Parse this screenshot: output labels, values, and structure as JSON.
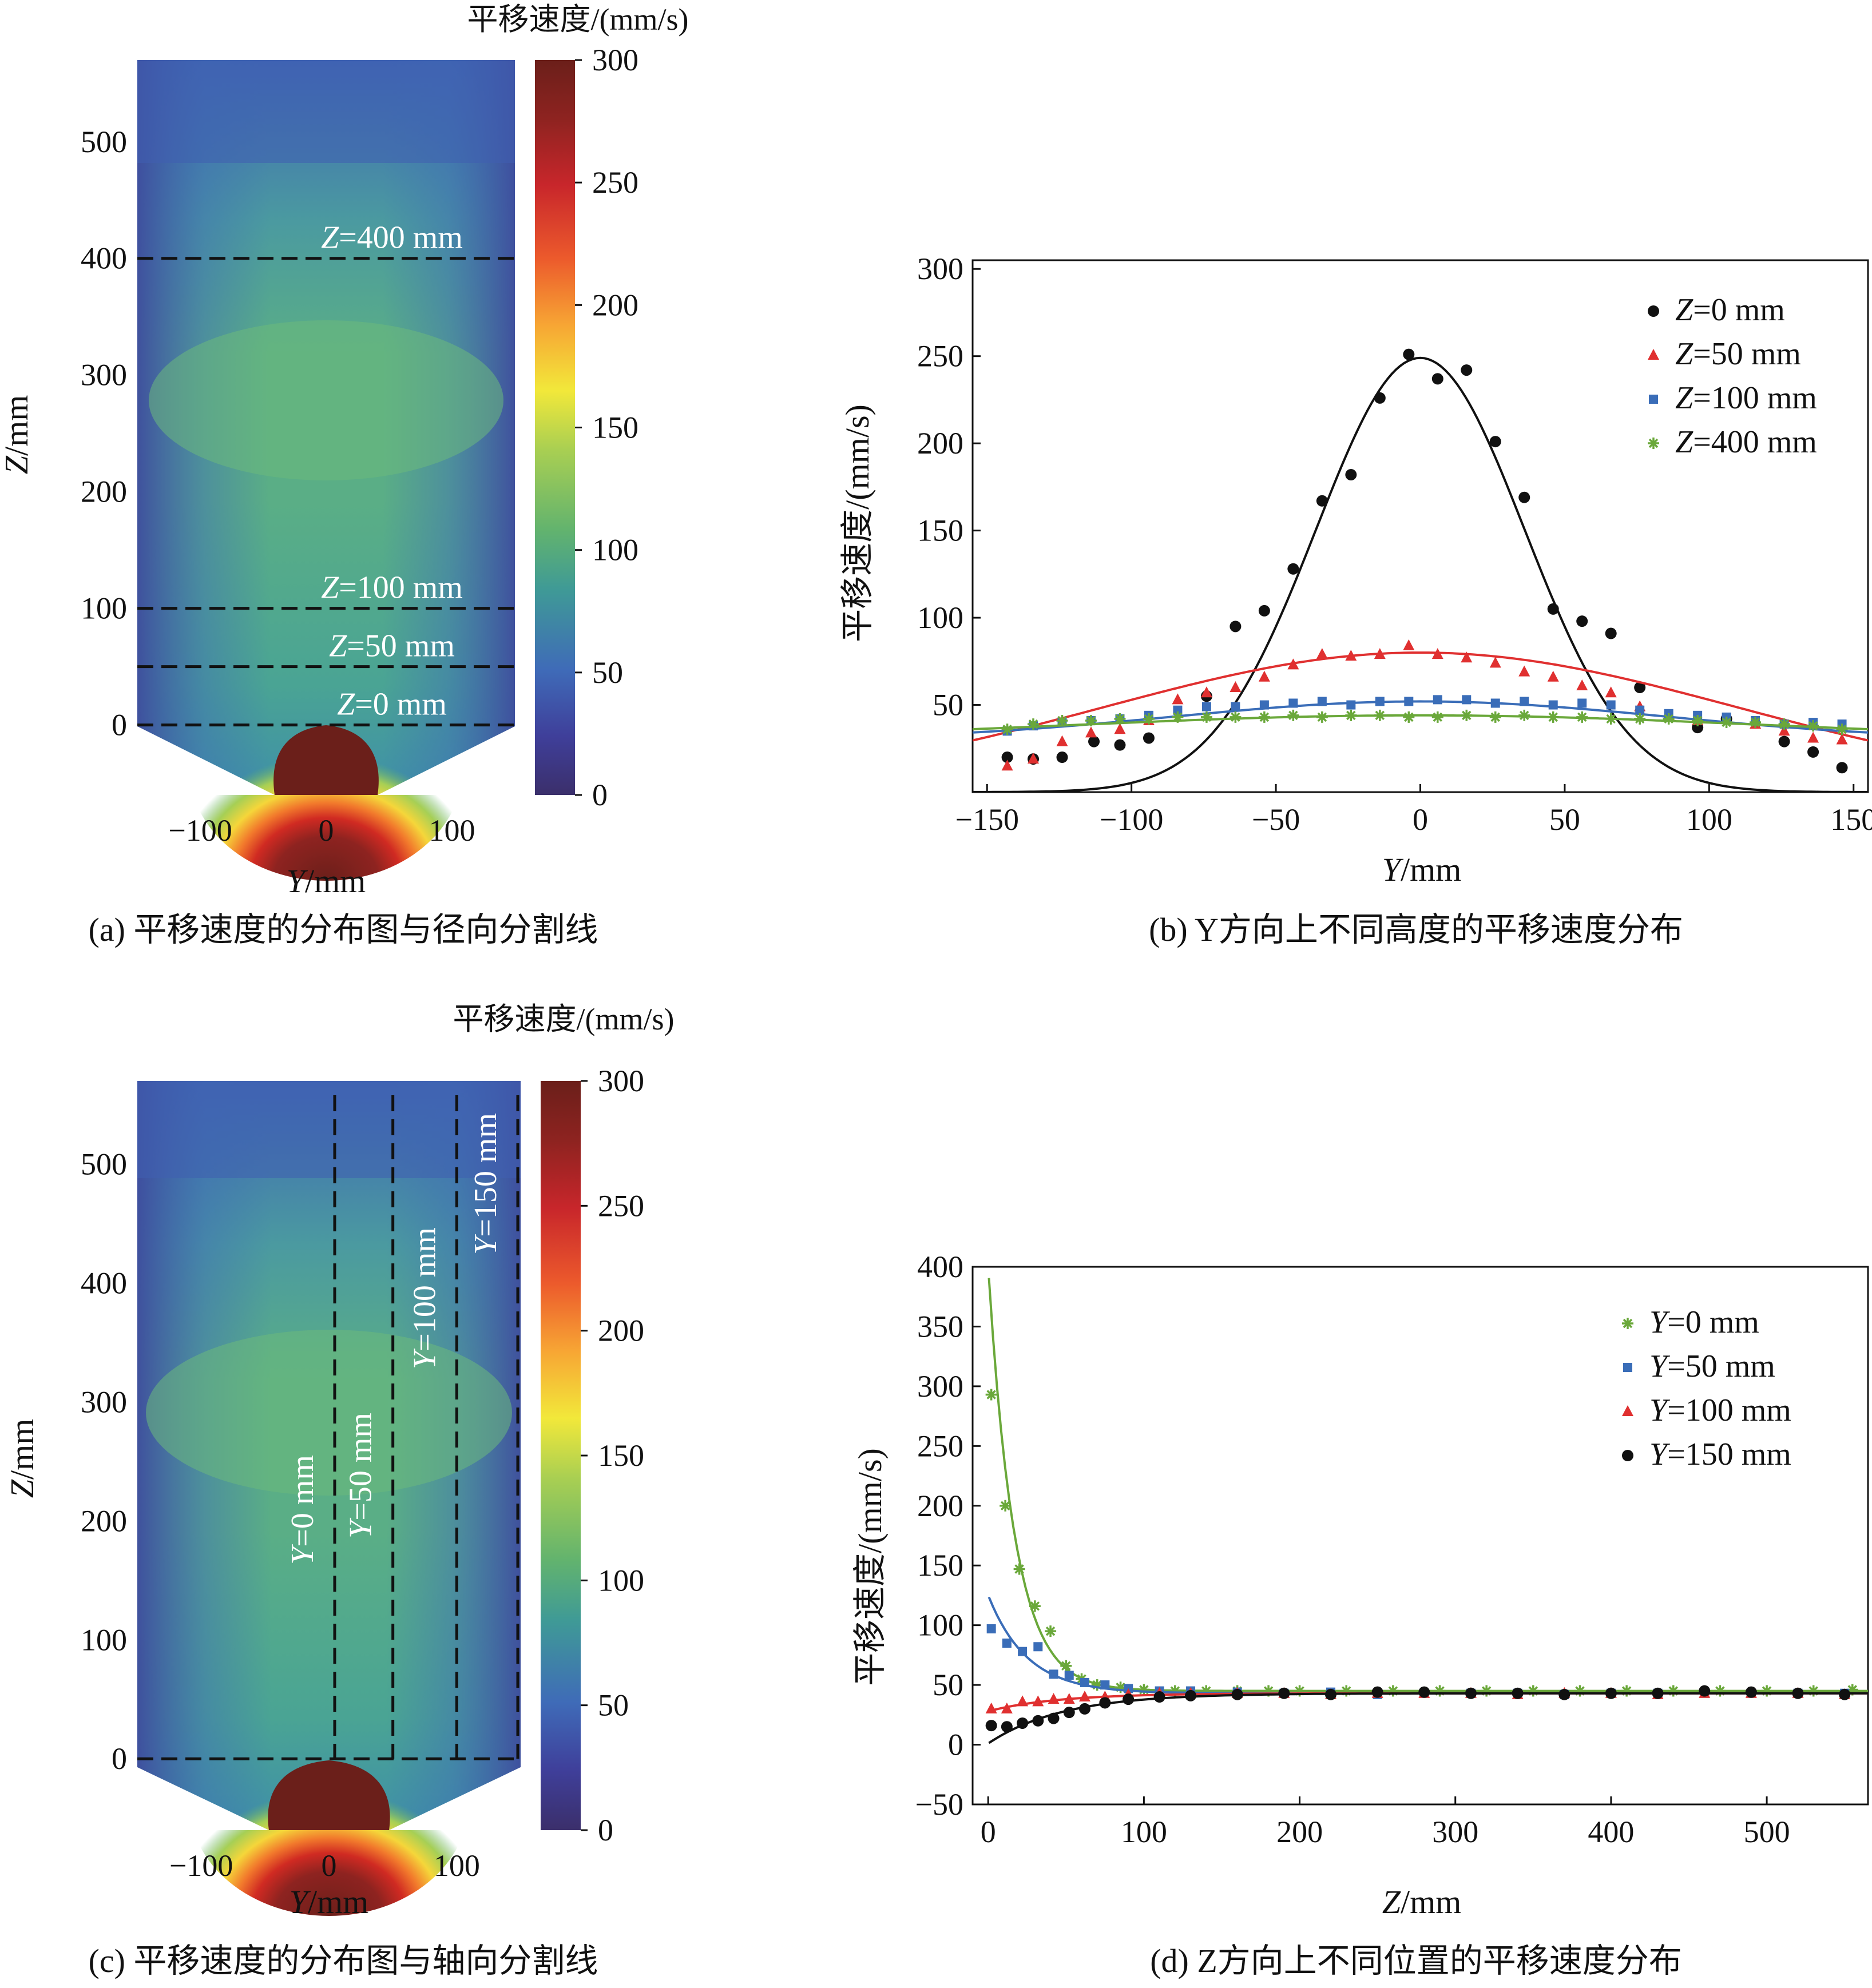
{
  "colors": {
    "Z0": "#111111",
    "Z50": "#e03030",
    "Z100": "#3a6db8",
    "Z400": "#6aa83a",
    "Y0": "#6aa83a",
    "Y50": "#3a6db8",
    "Y100": "#e03030",
    "Y150": "#111111"
  },
  "chart_data": [
    {
      "id": "a",
      "type": "heatmap",
      "caption": "(a) 平移速度的分布图与径向分割线",
      "xlabel": "Y/mm",
      "ylabel": "Z/mm",
      "x_ticks": [
        "−100",
        "0",
        "100"
      ],
      "y_ticks": [
        "0",
        "100",
        "200",
        "300",
        "400",
        "500"
      ],
      "colorbar_title": "平移速度/(mm/s)",
      "colorbar_ticks": [
        "0",
        "50",
        "100",
        "150",
        "200",
        "250",
        "300"
      ],
      "colorbar_range": [
        0,
        300
      ],
      "xlim": [
        -150,
        150
      ],
      "ylim": [
        -60,
        570
      ],
      "cut_lines": [
        {
          "label": "Z=0 mm",
          "z": 0
        },
        {
          "label": "Z=50 mm",
          "z": 50
        },
        {
          "label": "Z=100 mm",
          "z": 100
        },
        {
          "label": "Z=400 mm",
          "z": 400
        }
      ]
    },
    {
      "id": "b",
      "type": "scatter",
      "caption": "(b) Y方向上不同高度的平移速度分布",
      "xlabel": "Y/mm",
      "ylabel": "平移速度/(mm/s)",
      "xlim": [
        -155,
        155
      ],
      "ylim": [
        0,
        305
      ],
      "x_ticks": [
        "−150",
        "−100",
        "−50",
        "0",
        "50",
        "100",
        "150"
      ],
      "y_ticks": [
        "50",
        "100",
        "150",
        "200",
        "250",
        "300"
      ],
      "legend_position": "top-right",
      "series": [
        {
          "name": "Z=0 mm",
          "marker": "circle",
          "points": [
            [
              -143,
              20
            ],
            [
              -134,
              19
            ],
            [
              -124,
              20
            ],
            [
              -113,
              29
            ],
            [
              -104,
              27
            ],
            [
              -94,
              31
            ],
            [
              -74,
              55
            ],
            [
              -64,
              95
            ],
            [
              -54,
              104
            ],
            [
              -44,
              128
            ],
            [
              -34,
              167
            ],
            [
              -24,
              182
            ],
            [
              -14,
              226
            ],
            [
              -4,
              251
            ],
            [
              6,
              237
            ],
            [
              16,
              242
            ],
            [
              26,
              201
            ],
            [
              36,
              169
            ],
            [
              46,
              105
            ],
            [
              56,
              98
            ],
            [
              66,
              91
            ],
            [
              76,
              60
            ],
            [
              96,
              37
            ],
            [
              106,
              42
            ],
            [
              126,
              29
            ],
            [
              136,
              23
            ],
            [
              146,
              14
            ]
          ],
          "fit": {
            "kind": "gaussian",
            "baseline": 0,
            "amplitude": 249,
            "center": 0,
            "sigma": 36
          }
        },
        {
          "name": "Z=50 mm",
          "marker": "triangle",
          "points": [
            [
              -143,
              15
            ],
            [
              -134,
              19
            ],
            [
              -124,
              29
            ],
            [
              -114,
              34
            ],
            [
              -104,
              36
            ],
            [
              -94,
              41
            ],
            [
              -84,
              53
            ],
            [
              -74,
              57
            ],
            [
              -64,
              60
            ],
            [
              -54,
              66
            ],
            [
              -44,
              73
            ],
            [
              -34,
              79
            ],
            [
              -24,
              78
            ],
            [
              -14,
              79
            ],
            [
              -4,
              84
            ],
            [
              6,
              79
            ],
            [
              16,
              77
            ],
            [
              26,
              74
            ],
            [
              36,
              69
            ],
            [
              46,
              66
            ],
            [
              56,
              61
            ],
            [
              66,
              57
            ],
            [
              76,
              49
            ],
            [
              86,
              44
            ],
            [
              96,
              41
            ],
            [
              106,
              42
            ],
            [
              116,
              39
            ],
            [
              126,
              35
            ],
            [
              136,
              31
            ],
            [
              146,
              30
            ]
          ],
          "fit": {
            "kind": "gaussian",
            "baseline": 0,
            "amplitude": 80,
            "center": 0,
            "sigma": 110
          }
        },
        {
          "name": "Z=100 mm",
          "marker": "square",
          "points": [
            [
              -143,
              35
            ],
            [
              -134,
              38
            ],
            [
              -124,
              40
            ],
            [
              -114,
              41
            ],
            [
              -104,
              42
            ],
            [
              -94,
              44
            ],
            [
              -84,
              47
            ],
            [
              -74,
              49
            ],
            [
              -64,
              49
            ],
            [
              -54,
              50
            ],
            [
              -44,
              51
            ],
            [
              -34,
              52
            ],
            [
              -24,
              50
            ],
            [
              -14,
              52
            ],
            [
              -4,
              52
            ],
            [
              6,
              53
            ],
            [
              16,
              53
            ],
            [
              26,
              51
            ],
            [
              36,
              52
            ],
            [
              46,
              50
            ],
            [
              56,
              51
            ],
            [
              66,
              50
            ],
            [
              76,
              47
            ],
            [
              86,
              45
            ],
            [
              96,
              44
            ],
            [
              106,
              43
            ],
            [
              116,
              41
            ],
            [
              126,
              39
            ],
            [
              136,
              40
            ],
            [
              146,
              39
            ]
          ],
          "fit": {
            "kind": "gaussian",
            "baseline": 30,
            "amplitude": 22,
            "center": 0,
            "sigma": 85
          }
        },
        {
          "name": "Z=400 mm",
          "marker": "star",
          "points": [
            [
              -143,
              36
            ],
            [
              -134,
              39
            ],
            [
              -124,
              41
            ],
            [
              -114,
              41
            ],
            [
              -104,
              42
            ],
            [
              -94,
              42
            ],
            [
              -84,
              43
            ],
            [
              -74,
              43
            ],
            [
              -64,
              43
            ],
            [
              -54,
              43
            ],
            [
              -44,
              44
            ],
            [
              -34,
              43
            ],
            [
              -24,
              44
            ],
            [
              -14,
              44
            ],
            [
              -4,
              43
            ],
            [
              6,
              43
            ],
            [
              16,
              44
            ],
            [
              26,
              43
            ],
            [
              36,
              44
            ],
            [
              46,
              43
            ],
            [
              56,
              43
            ],
            [
              66,
              42
            ],
            [
              76,
              42
            ],
            [
              86,
              42
            ],
            [
              96,
              41
            ],
            [
              106,
              40
            ],
            [
              116,
              40
            ],
            [
              126,
              39
            ],
            [
              136,
              38
            ],
            [
              146,
              36
            ]
          ],
          "fit": {
            "kind": "gaussian",
            "baseline": 30,
            "amplitude": 14,
            "center": 0,
            "sigma": 120
          }
        }
      ]
    },
    {
      "id": "c",
      "type": "heatmap",
      "caption": "(c) 平移速度的分布图与轴向分割线",
      "xlabel": "Y/mm",
      "ylabel": "Z/mm",
      "x_ticks": [
        "−100",
        "0",
        "100"
      ],
      "y_ticks": [
        "0",
        "100",
        "200",
        "300",
        "400",
        "500"
      ],
      "colorbar_title": "平移速度/(mm/s)",
      "colorbar_ticks": [
        "0",
        "50",
        "100",
        "150",
        "200",
        "250",
        "300"
      ],
      "colorbar_range": [
        0,
        300
      ],
      "xlim": [
        -150,
        150
      ],
      "ylim": [
        -60,
        570
      ],
      "cut_lines": [
        {
          "label": "Y=0 mm",
          "y": 0
        },
        {
          "label": "Y=50 mm",
          "y": 50
        },
        {
          "label": "Y=100 mm",
          "y": 100
        },
        {
          "label": "Y=150 mm",
          "y": 150
        }
      ]
    },
    {
      "id": "d",
      "type": "scatter",
      "caption": "(d) Z方向上不同位置的平移速度分布",
      "xlabel": "Z/mm",
      "ylabel": "平移速度/(mm/s)",
      "xlim": [
        -10,
        565
      ],
      "ylim": [
        -50,
        400
      ],
      "x_ticks": [
        "0",
        "100",
        "200",
        "300",
        "400",
        "500"
      ],
      "y_ticks": [
        "−50",
        "0",
        "50",
        "100",
        "150",
        "200",
        "250",
        "300",
        "350",
        "400"
      ],
      "legend_position": "top-right",
      "series": [
        {
          "name": "Y=0 mm",
          "marker": "star",
          "points": [
            [
              2,
              293
            ],
            [
              11,
              200
            ],
            [
              20,
              147
            ],
            [
              30,
              116
            ],
            [
              40,
              95
            ],
            [
              50,
              66
            ],
            [
              60,
              55
            ],
            [
              70,
              50
            ],
            [
              85,
              48
            ],
            [
              100,
              46
            ],
            [
              120,
              45
            ],
            [
              140,
              45
            ],
            [
              160,
              45
            ],
            [
              180,
              45
            ],
            [
              200,
              45
            ],
            [
              230,
              45
            ],
            [
              260,
              45
            ],
            [
              290,
              45
            ],
            [
              320,
              45
            ],
            [
              350,
              45
            ],
            [
              380,
              45
            ],
            [
              410,
              45
            ],
            [
              440,
              45
            ],
            [
              470,
              45
            ],
            [
              500,
              45
            ],
            [
              530,
              45
            ],
            [
              555,
              46
            ]
          ],
          "fit": {
            "kind": "exp",
            "baseline": 45,
            "amplitude": 355,
            "decay": 17
          }
        },
        {
          "name": "Y=50 mm",
          "marker": "square",
          "points": [
            [
              2,
              97
            ],
            [
              12,
              85
            ],
            [
              22,
              78
            ],
            [
              32,
              82
            ],
            [
              42,
              59
            ],
            [
              52,
              58
            ],
            [
              62,
              52
            ],
            [
              75,
              50
            ],
            [
              90,
              47
            ],
            [
              110,
              45
            ],
            [
              130,
              45
            ],
            [
              160,
              44
            ],
            [
              190,
              43
            ],
            [
              220,
              44
            ],
            [
              250,
              42
            ],
            [
              280,
              43
            ],
            [
              310,
              43
            ],
            [
              340,
              43
            ],
            [
              370,
              42
            ],
            [
              400,
              43
            ],
            [
              430,
              43
            ],
            [
              460,
              43
            ],
            [
              490,
              43
            ],
            [
              520,
              43
            ],
            [
              550,
              43
            ]
          ],
          "fit": {
            "kind": "exp",
            "baseline": 43,
            "amplitude": 82,
            "decay": 25
          }
        },
        {
          "name": "Y=100 mm",
          "marker": "triangle",
          "points": [
            [
              2,
              30
            ],
            [
              12,
              30
            ],
            [
              22,
              36
            ],
            [
              32,
              36
            ],
            [
              42,
              38
            ],
            [
              52,
              38
            ],
            [
              62,
              40
            ],
            [
              75,
              40
            ],
            [
              90,
              42
            ],
            [
              110,
              43
            ],
            [
              130,
              43
            ],
            [
              160,
              43
            ],
            [
              190,
              43
            ],
            [
              220,
              42
            ],
            [
              250,
              43
            ],
            [
              280,
              43
            ],
            [
              310,
              43
            ],
            [
              340,
              42
            ],
            [
              370,
              43
            ],
            [
              400,
              43
            ],
            [
              430,
              42
            ],
            [
              460,
              43
            ],
            [
              490,
              43
            ],
            [
              520,
              43
            ],
            [
              550,
              42
            ]
          ],
          "fit": {
            "kind": "exp",
            "baseline": 43,
            "amplitude": -15,
            "decay": 45
          }
        },
        {
          "name": "Y=150 mm",
          "marker": "circle",
          "points": [
            [
              2,
              16
            ],
            [
              12,
              15
            ],
            [
              22,
              18
            ],
            [
              32,
              20
            ],
            [
              42,
              22
            ],
            [
              52,
              27
            ],
            [
              62,
              30
            ],
            [
              75,
              35
            ],
            [
              90,
              38
            ],
            [
              110,
              40
            ],
            [
              130,
              41
            ],
            [
              160,
              42
            ],
            [
              190,
              43
            ],
            [
              220,
              42
            ],
            [
              250,
              44
            ],
            [
              280,
              44
            ],
            [
              310,
              43
            ],
            [
              340,
              43
            ],
            [
              370,
              42
            ],
            [
              400,
              43
            ],
            [
              430,
              43
            ],
            [
              460,
              45
            ],
            [
              490,
              44
            ],
            [
              520,
              43
            ],
            [
              550,
              42
            ]
          ],
          "fit": {
            "kind": "exp",
            "baseline": 43,
            "amplitude": -42,
            "decay": 48
          }
        }
      ]
    }
  ]
}
